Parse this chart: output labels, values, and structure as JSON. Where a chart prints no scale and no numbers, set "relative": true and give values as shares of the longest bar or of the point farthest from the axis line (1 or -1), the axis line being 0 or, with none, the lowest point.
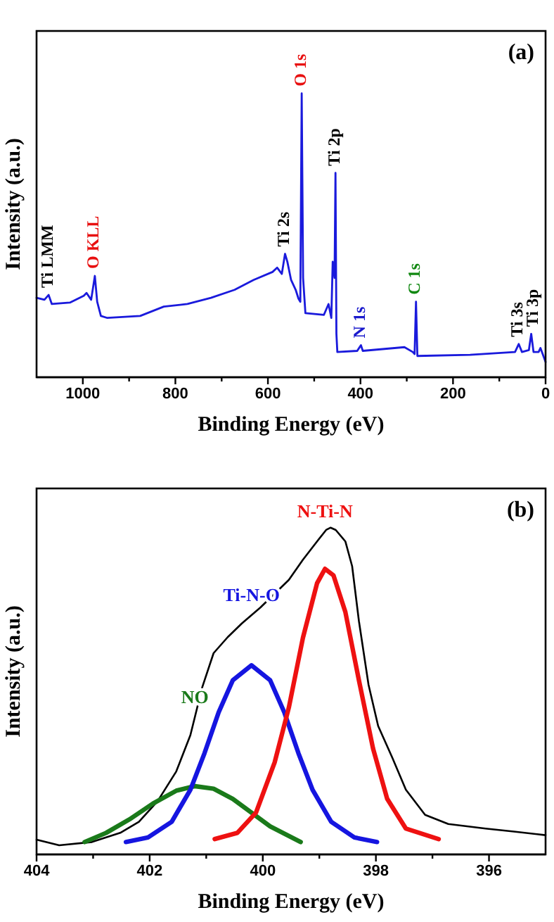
{
  "chart_data": [
    {
      "type": "line",
      "title": "(a)",
      "xlabel": "Binding Energy (eV)",
      "ylabel": "Intensity (a.u.)",
      "relative": true,
      "tick_labels": "x",
      "xlim": [
        1100,
        0
      ],
      "xticks": [
        1000,
        {
          "value": 900,
          "label": null
        },
        800,
        {
          "value": 700,
          "label": null
        },
        600,
        {
          "value": 500,
          "label": null
        },
        400,
        {
          "value": 300,
          "label": null
        },
        200,
        {
          "value": 100,
          "label": null
        },
        0
      ],
      "series": [
        {
          "color": "#1a1adc",
          "x": [
            1100,
            1083,
            1074,
            1067,
            1028,
            998,
            992,
            982,
            974,
            969,
            961,
            947,
            876,
            825,
            774,
            723,
            672,
            631,
            590,
            580,
            570,
            563,
            558,
            550,
            540,
            534,
            530,
            527,
            524,
            519,
            479,
            469,
            463,
            460,
            456,
            454,
            452,
            450,
            407,
            399,
            395,
            305,
            287,
            283,
            280,
            277,
            163,
            66,
            58,
            51,
            36,
            31,
            26,
            15,
            11,
            0
          ],
          "values": [
            0.28,
            0.273,
            0.29,
            0.258,
            0.263,
            0.287,
            0.297,
            0.273,
            0.357,
            0.266,
            0.216,
            0.209,
            0.216,
            0.249,
            0.258,
            0.28,
            0.308,
            0.343,
            0.371,
            0.386,
            0.364,
            0.435,
            0.407,
            0.343,
            0.308,
            0.277,
            0.266,
            1,
            0.35,
            0.226,
            0.22,
            0.258,
            0.209,
            0.407,
            0.35,
            0.72,
            0.153,
            0.089,
            0.093,
            0.113,
            0.093,
            0.106,
            0.089,
            0.082,
            0.266,
            0.075,
            0.079,
            0.089,
            0.117,
            0.089,
            0.096,
            0.153,
            0.089,
            0.089,
            0.103,
            0.054
          ]
        }
      ],
      "annotations": [
        {
          "text": "Ti LMM",
          "x": 1074,
          "y": 0.29
        },
        {
          "text": "O KLL",
          "x": 974,
          "y": 0.357
        },
        {
          "text": "Ti 2s",
          "x": 563,
          "y": 0.435
        },
        {
          "text": "O 1s",
          "x": 527,
          "y": 1
        },
        {
          "text": "Ti 2p",
          "x": 454,
          "y": 0.72
        },
        {
          "text": "N 1s",
          "x": 399,
          "y": 0.113
        },
        {
          "text": "C 1s",
          "x": 280,
          "y": 0.266
        },
        {
          "text": "Ti 3s",
          "x": 58,
          "y": 0.117
        },
        {
          "text": "Ti 3p",
          "x": 31,
          "y": 0.153
        }
      ]
    },
    {
      "type": "line",
      "title": "(b)",
      "xlabel": "Binding Energy (eV)",
      "ylabel": "Intensity (a.u.)",
      "relative": true,
      "tick_labels": "x",
      "xlim": [
        404,
        395
      ],
      "xticks": [
        404,
        {
          "value": 403,
          "label": null
        },
        402,
        {
          "value": 401,
          "label": null
        },
        400,
        {
          "value": 399,
          "label": null
        },
        398,
        {
          "value": 397,
          "label": null
        },
        396
      ],
      "series": [
        {
          "color": "#000000",
          "x": [
            404.0,
            403.6,
            403.02,
            402.52,
            402.19,
            401.86,
            401.53,
            401.28,
            401.16,
            401.07,
            400.87,
            400.62,
            400.37,
            400.04,
            399.79,
            399.54,
            399.29,
            399.04,
            398.88,
            398.8,
            398.71,
            398.54,
            398.42,
            398.3,
            398.13,
            397.96,
            397.71,
            397.47,
            397.13,
            396.72,
            396.06,
            395.56,
            395.0
          ],
          "values": [
            0.045,
            0.028,
            0.038,
            0.066,
            0.1,
            0.163,
            0.254,
            0.365,
            0.449,
            0.512,
            0.616,
            0.665,
            0.707,
            0.756,
            0.798,
            0.84,
            0.902,
            0.958,
            0.993,
            1,
            0.993,
            0.958,
            0.882,
            0.714,
            0.519,
            0.393,
            0.296,
            0.198,
            0.121,
            0.093,
            0.079,
            0.07,
            0.059
          ]
        },
        {
          "name": "NO",
          "color": "#1a7a1a",
          "x": [
            403.15,
            402.77,
            402.36,
            401.94,
            401.53,
            401.2,
            400.87,
            400.53,
            400.2,
            399.87,
            399.33
          ],
          "values": [
            0.038,
            0.066,
            0.107,
            0.156,
            0.195,
            0.209,
            0.201,
            0.17,
            0.128,
            0.086,
            0.038
          ]
        },
        {
          "name": "Ti-N-O",
          "color": "#1515e0",
          "x": [
            402.42,
            402.03,
            401.61,
            401.28,
            401.03,
            400.78,
            400.53,
            400.2,
            399.87,
            399.62,
            399.37,
            399.12,
            398.79,
            398.38,
            397.98
          ],
          "values": [
            0.038,
            0.052,
            0.1,
            0.198,
            0.31,
            0.435,
            0.533,
            0.579,
            0.533,
            0.435,
            0.31,
            0.198,
            0.1,
            0.052,
            0.038
          ]
        },
        {
          "name": "N-Ti-N",
          "color": "#ee1111",
          "x": [
            400.85,
            400.45,
            400.12,
            399.79,
            399.54,
            399.29,
            399.04,
            398.9,
            398.75,
            398.54,
            398.3,
            398.05,
            397.8,
            397.47,
            396.89
          ],
          "values": [
            0.047,
            0.066,
            0.128,
            0.282,
            0.449,
            0.663,
            0.83,
            0.874,
            0.854,
            0.742,
            0.533,
            0.324,
            0.17,
            0.079,
            0.047
          ]
        }
      ]
    }
  ]
}
